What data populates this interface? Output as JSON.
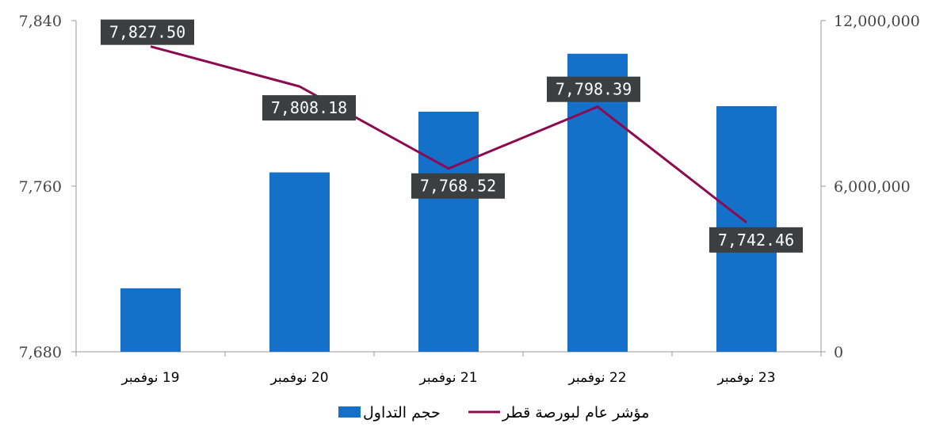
{
  "chart_data": {
    "type": "bar",
    "categories": [
      "19 نوفمبر",
      "20 نوفمبر",
      "21 نوفمبر",
      "22 نوفمبر",
      "23 نوفمبر"
    ],
    "series": [
      {
        "name": "حجم التداول",
        "type": "bar",
        "axis": "right",
        "color": "#1470C8",
        "values": [
          2300000,
          6500000,
          8700000,
          10800000,
          8900000
        ]
      },
      {
        "name": "مؤشر عام لبورصة قطر",
        "type": "line",
        "axis": "left",
        "color": "#8B0A50",
        "values": [
          7827.5,
          7808.18,
          7768.52,
          7798.39,
          7742.46
        ],
        "labels": [
          "7,827.50",
          "7,808.18",
          "7,768.52",
          "7,798.39",
          "7,742.46"
        ]
      }
    ],
    "y_left": {
      "min": 7680,
      "max": 7840,
      "ticks": [
        "7,680",
        "7,760",
        "7,840"
      ]
    },
    "y_right": {
      "min": 0,
      "max": 12000000,
      "ticks": [
        "0",
        "6,000,000",
        "12,000,000"
      ]
    },
    "legend": {
      "position": "bottom"
    },
    "grid": false,
    "label_box_color": "#3B3F3F"
  }
}
